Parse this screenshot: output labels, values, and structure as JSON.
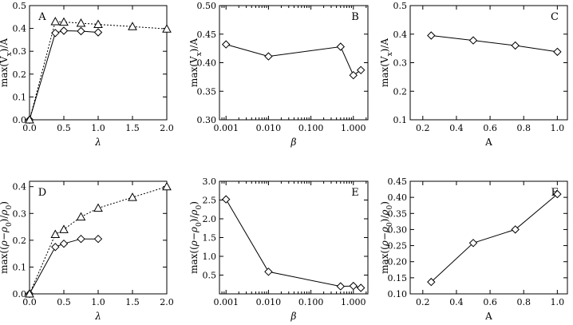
{
  "chart_data": [
    {
      "panel": "A",
      "type": "line",
      "xlabel": "λ",
      "ylabel": "max(V_x)/A",
      "xscale": "linear",
      "xlim": [
        0.0,
        2.0
      ],
      "ylim": [
        0.0,
        0.5
      ],
      "xticks": [
        0.0,
        0.5,
        1.0,
        1.5,
        2.0
      ],
      "xtick_labels": [
        "0.0",
        "0.5",
        "1.0",
        "1.5",
        "2.0"
      ],
      "yticks": [
        0.0,
        0.1,
        0.2,
        0.3,
        0.4,
        0.5
      ],
      "ytick_labels": [
        "0.0",
        "0.1",
        "0.2",
        "0.3",
        "0.4",
        "0.5"
      ],
      "series": [
        {
          "marker": "diamond",
          "dash": "solid",
          "x": [
            0.0,
            0.375,
            0.5,
            0.75,
            1.0
          ],
          "y": [
            0.0,
            0.38,
            0.39,
            0.388,
            0.383
          ]
        },
        {
          "marker": "triangle",
          "dash": "dotted",
          "x": [
            0.0,
            0.375,
            0.5,
            0.75,
            1.0,
            1.5,
            2.0
          ],
          "y": [
            0.0,
            0.43,
            0.428,
            0.423,
            0.418,
            0.408,
            0.398
          ]
        }
      ]
    },
    {
      "panel": "B",
      "type": "line",
      "xlabel": "β",
      "ylabel": "max(V_x)/A",
      "xscale": "log",
      "xlim": [
        0.0007,
        2.2
      ],
      "ylim": [
        0.3,
        0.5
      ],
      "xticks": [
        0.001,
        0.01,
        0.1,
        1.0
      ],
      "xtick_labels": [
        "0.001",
        "0.010",
        "0.100",
        "1.000"
      ],
      "yticks": [
        0.3,
        0.35,
        0.4,
        0.45,
        0.5
      ],
      "ytick_labels": [
        "0.30",
        "0.35",
        "0.40",
        "0.45",
        "0.50"
      ],
      "series": [
        {
          "marker": "diamond",
          "dash": "solid",
          "x": [
            0.001,
            0.01,
            0.5,
            1.0,
            1.5
          ],
          "y": [
            0.432,
            0.411,
            0.428,
            0.378,
            0.387
          ]
        }
      ]
    },
    {
      "panel": "C",
      "type": "line",
      "xlabel": "A",
      "ylabel": "max(V_x)/A",
      "xscale": "linear",
      "xlim": [
        0.125,
        1.06
      ],
      "ylim": [
        0.1,
        0.5
      ],
      "xticks": [
        0.2,
        0.4,
        0.6,
        0.8,
        1.0
      ],
      "xtick_labels": [
        "0.2",
        "0.4",
        "0.6",
        "0.8",
        "1.0"
      ],
      "yticks": [
        0.1,
        0.2,
        0.3,
        0.4,
        0.5
      ],
      "ytick_labels": [
        "0.1",
        "0.2",
        "0.3",
        "0.4",
        "0.5"
      ],
      "series": [
        {
          "marker": "diamond",
          "dash": "solid",
          "x": [
            0.25,
            0.5,
            0.75,
            1.0
          ],
          "y": [
            0.395,
            0.378,
            0.36,
            0.338
          ]
        }
      ]
    },
    {
      "panel": "D",
      "type": "line",
      "xlabel": "λ",
      "ylabel": "max((ρ−ρ₀)/ρ₀)",
      "xscale": "linear",
      "xlim": [
        0.0,
        2.0
      ],
      "ylim": [
        0.0,
        0.42
      ],
      "xticks": [
        0.0,
        0.5,
        1.0,
        1.5,
        2.0
      ],
      "xtick_labels": [
        "0.0",
        "0.5",
        "1.0",
        "1.5",
        "2.0"
      ],
      "yticks": [
        0.0,
        0.1,
        0.2,
        0.3,
        0.4
      ],
      "ytick_labels": [
        "0.0",
        "0.1",
        "0.2",
        "0.3",
        "0.4"
      ],
      "series": [
        {
          "marker": "diamond",
          "dash": "solid",
          "x": [
            0.0,
            0.375,
            0.5,
            0.75,
            1.0
          ],
          "y": [
            0.0,
            0.175,
            0.187,
            0.205,
            0.205
          ]
        },
        {
          "marker": "triangle",
          "dash": "dotted",
          "x": [
            0.0,
            0.375,
            0.5,
            0.75,
            1.0,
            1.5,
            2.0
          ],
          "y": [
            0.0,
            0.222,
            0.24,
            0.287,
            0.32,
            0.36,
            0.4
          ]
        }
      ]
    },
    {
      "panel": "E",
      "type": "line",
      "xlabel": "β",
      "ylabel": "max((ρ−ρ₀)/ρ₀)",
      "xscale": "log",
      "xlim": [
        0.0007,
        2.2
      ],
      "ylim": [
        0.0,
        3.0
      ],
      "xticks": [
        0.001,
        0.01,
        0.1,
        1.0
      ],
      "xtick_labels": [
        "0.001",
        "0.010",
        "0.100",
        "1.000"
      ],
      "yticks": [
        0.5,
        1.0,
        1.5,
        2.0,
        2.5,
        3.0
      ],
      "ytick_labels": [
        "0.5",
        "1.0",
        "1.5",
        "2.0",
        "2.5",
        "3.0"
      ],
      "series": [
        {
          "marker": "diamond",
          "dash": "solid",
          "x": [
            0.001,
            0.01,
            0.5,
            1.0,
            1.5
          ],
          "y": [
            2.52,
            0.59,
            0.2,
            0.21,
            0.16
          ]
        }
      ]
    },
    {
      "panel": "F",
      "type": "line",
      "xlabel": "A",
      "ylabel": "max((ρ−ρ₀)/ρ₀)",
      "xscale": "linear",
      "xlim": [
        0.125,
        1.06
      ],
      "ylim": [
        0.1,
        0.45
      ],
      "xticks": [
        0.2,
        0.4,
        0.6,
        0.8,
        1.0
      ],
      "xtick_labels": [
        "0.2",
        "0.4",
        "0.6",
        "0.8",
        "1.0"
      ],
      "yticks": [
        0.1,
        0.15,
        0.2,
        0.25,
        0.3,
        0.35,
        0.4,
        0.45
      ],
      "ytick_labels": [
        "0.10",
        "0.15",
        "0.20",
        "0.25",
        "0.30",
        "0.35",
        "0.40",
        "0.45"
      ],
      "series": [
        {
          "marker": "diamond",
          "dash": "solid",
          "x": [
            0.25,
            0.5,
            0.75,
            1.0
          ],
          "y": [
            0.137,
            0.258,
            0.3,
            0.41
          ]
        }
      ]
    }
  ]
}
